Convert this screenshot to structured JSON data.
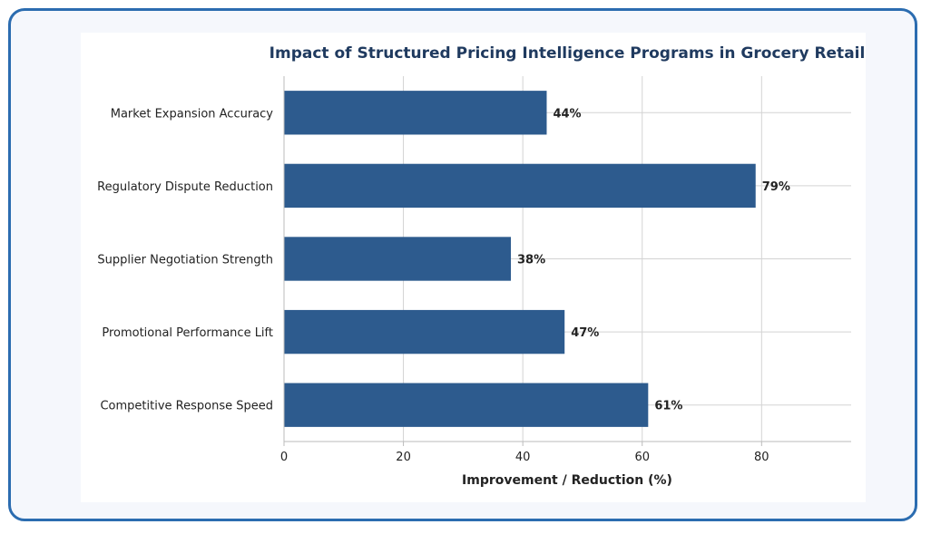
{
  "chart_data": {
    "type": "bar",
    "orientation": "horizontal",
    "title": "Impact of Structured Pricing Intelligence Programs in Grocery Retail",
    "xlabel": "Improvement / Reduction (%)",
    "ylabel": "",
    "categories": [
      "Market Expansion Accuracy",
      "Regulatory Dispute Reduction",
      "Supplier Negotiation Strength",
      "Promotional Performance Lift",
      "Competitive Response Speed"
    ],
    "values": [
      44,
      79,
      38,
      47,
      61
    ],
    "value_labels": [
      "44%",
      "79%",
      "38%",
      "47%",
      "61%"
    ],
    "xlim": [
      0,
      95
    ],
    "xticks": [
      0,
      20,
      40,
      60,
      80
    ],
    "xtick_labels": [
      "0",
      "20",
      "40",
      "60",
      "80"
    ],
    "grid": true,
    "colors": {
      "bar": "#2d5b8e",
      "grid": "#d3d3d3",
      "title": "#1f3a5f",
      "frame_border": "#2b6cb0"
    }
  }
}
